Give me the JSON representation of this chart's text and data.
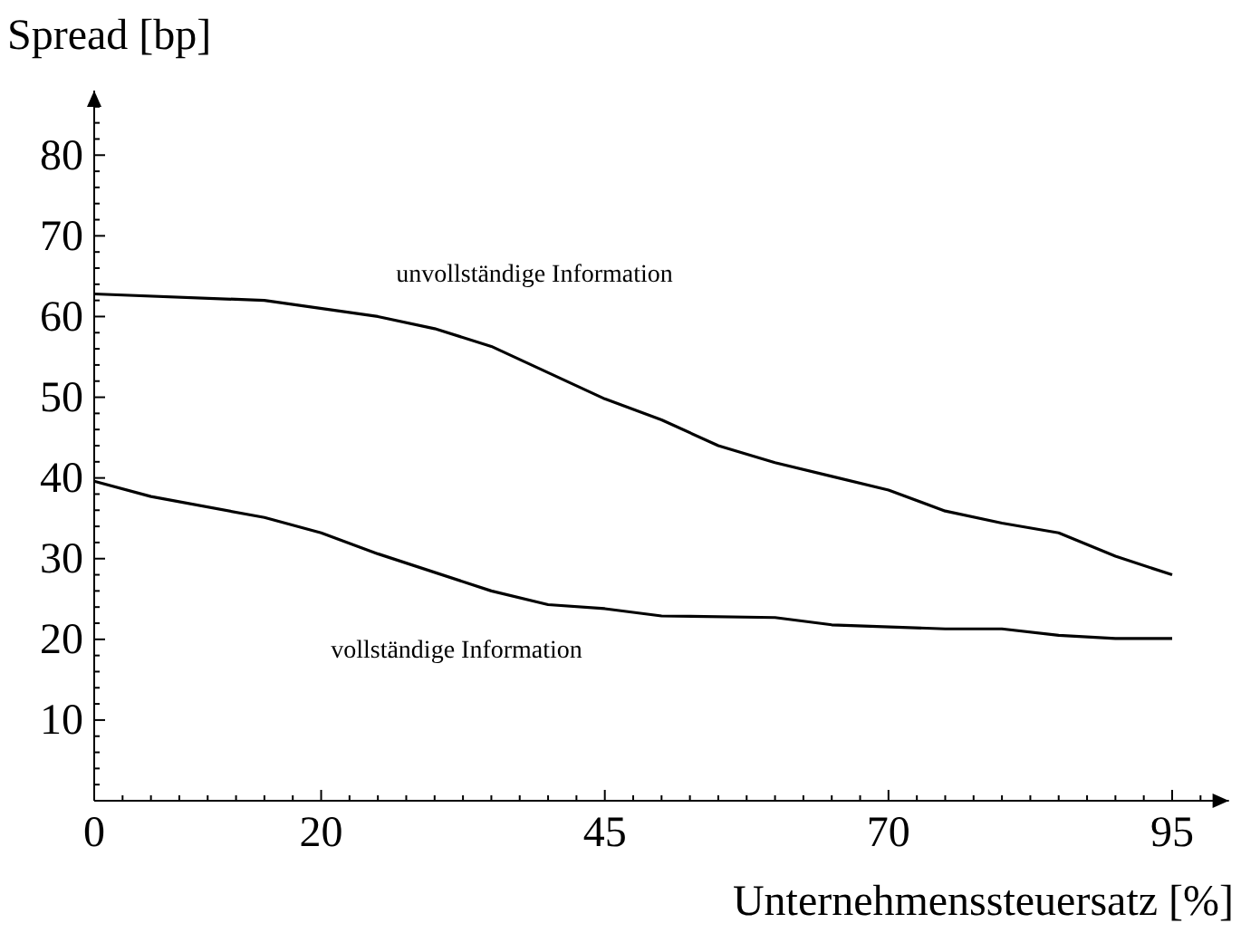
{
  "chart_data": {
    "type": "line",
    "xlabel": "Unternehmenssteuersatz [%]",
    "ylabel": "Spread [bp]",
    "xlim": [
      0,
      100
    ],
    "ylim": [
      0,
      88
    ],
    "xticks": [
      0,
      {
        "value": 2.5,
        "label": null
      },
      {
        "value": 5,
        "label": null
      },
      {
        "value": 7.5,
        "label": null
      },
      {
        "value": 10,
        "label": null
      },
      {
        "value": 12.5,
        "label": null
      },
      {
        "value": 15,
        "label": null
      },
      {
        "value": 17.5,
        "label": null
      },
      20,
      {
        "value": 22.5,
        "label": null
      },
      {
        "value": 25,
        "label": null
      },
      {
        "value": 27.5,
        "label": null
      },
      {
        "value": 30,
        "label": null
      },
      {
        "value": 32.5,
        "label": null
      },
      {
        "value": 35,
        "label": null
      },
      {
        "value": 37.5,
        "label": null
      },
      {
        "value": 40,
        "label": null
      },
      {
        "value": 42.5,
        "label": null
      },
      45,
      {
        "value": 47.5,
        "label": null
      },
      {
        "value": 50,
        "label": null
      },
      {
        "value": 52.5,
        "label": null
      },
      {
        "value": 55,
        "label": null
      },
      {
        "value": 57.5,
        "label": null
      },
      {
        "value": 60,
        "label": null
      },
      {
        "value": 62.5,
        "label": null
      },
      {
        "value": 65,
        "label": null
      },
      {
        "value": 67.5,
        "label": null
      },
      70,
      {
        "value": 72.5,
        "label": null
      },
      {
        "value": 75,
        "label": null
      },
      {
        "value": 77.5,
        "label": null
      },
      {
        "value": 80,
        "label": null
      },
      {
        "value": 82.5,
        "label": null
      },
      {
        "value": 85,
        "label": null
      },
      {
        "value": 87.5,
        "label": null
      },
      {
        "value": 90,
        "label": null
      },
      {
        "value": 92.5,
        "label": null
      },
      95,
      {
        "value": 97.5,
        "label": null
      }
    ],
    "yticks": [
      {
        "value": 2,
        "label": null
      },
      {
        "value": 4,
        "label": null
      },
      {
        "value": 6,
        "label": null
      },
      {
        "value": 8,
        "label": null
      },
      10,
      {
        "value": 12,
        "label": null
      },
      {
        "value": 14,
        "label": null
      },
      {
        "value": 16,
        "label": null
      },
      {
        "value": 18,
        "label": null
      },
      20,
      {
        "value": 22,
        "label": null
      },
      {
        "value": 24,
        "label": null
      },
      {
        "value": 26,
        "label": null
      },
      {
        "value": 28,
        "label": null
      },
      30,
      {
        "value": 32,
        "label": null
      },
      {
        "value": 34,
        "label": null
      },
      {
        "value": 36,
        "label": null
      },
      {
        "value": 38,
        "label": null
      },
      40,
      {
        "value": 42,
        "label": null
      },
      {
        "value": 44,
        "label": null
      },
      {
        "value": 46,
        "label": null
      },
      {
        "value": 48,
        "label": null
      },
      50,
      {
        "value": 52,
        "label": null
      },
      {
        "value": 54,
        "label": null
      },
      {
        "value": 56,
        "label": null
      },
      {
        "value": 58,
        "label": null
      },
      60,
      {
        "value": 62,
        "label": null
      },
      {
        "value": 64,
        "label": null
      },
      {
        "value": 66,
        "label": null
      },
      {
        "value": 68,
        "label": null
      },
      70,
      {
        "value": 72,
        "label": null
      },
      {
        "value": 74,
        "label": null
      },
      {
        "value": 76,
        "label": null
      },
      {
        "value": 78,
        "label": null
      },
      80,
      {
        "value": 82,
        "label": null
      },
      {
        "value": 84,
        "label": null
      },
      {
        "value": 86,
        "label": null
      }
    ],
    "series": [
      {
        "name": "unvollständige Information",
        "color": "#000000",
        "x": [
          0,
          15,
          25,
          30,
          35,
          45,
          50,
          55,
          60,
          65,
          70,
          75,
          80,
          85,
          90,
          95
        ],
        "values": [
          62.8,
          62.0,
          60.0,
          58.5,
          56.3,
          49.8,
          47.2,
          44.0,
          41.9,
          40.2,
          38.5,
          35.9,
          34.4,
          33.2,
          30.3,
          28.0
        ]
      },
      {
        "name": "vollständige Information",
        "color": "#000000",
        "x": [
          0,
          5,
          15,
          20,
          25,
          35,
          40,
          45,
          50,
          60,
          65,
          75,
          80,
          85,
          90,
          95
        ],
        "values": [
          39.6,
          37.7,
          35.1,
          33.2,
          30.6,
          26.0,
          24.3,
          23.8,
          22.9,
          22.7,
          21.8,
          21.3,
          21.3,
          20.5,
          20.1,
          20.1
        ]
      }
    ],
    "grid": false,
    "marker": "none",
    "line_style": "solid"
  }
}
